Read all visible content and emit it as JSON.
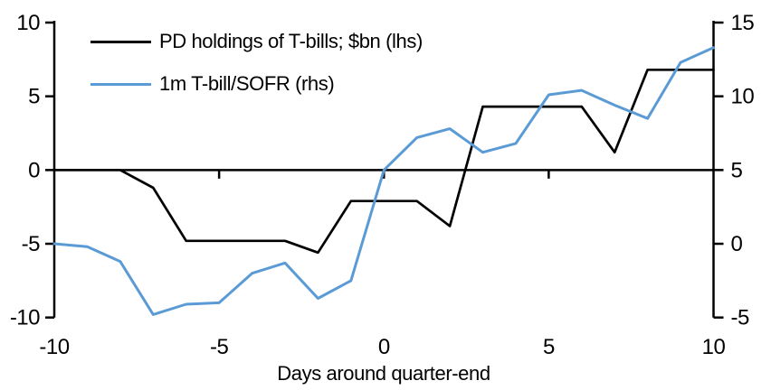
{
  "page": {
    "background": "#ffffff"
  },
  "colors": {
    "axis": "#000000",
    "text": "#000000",
    "series_black": "#000000",
    "series_blue": "#5B9BD5"
  },
  "legend": {
    "items": [
      {
        "label": "PD holdings of T-bills; $bn (lhs)",
        "color": "#000000"
      },
      {
        "label": "1m T-bill/SOFR (rhs)",
        "color": "#5B9BD5"
      }
    ]
  },
  "chart_data": {
    "type": "line",
    "title": "",
    "xlabel": "Days around quarter-end",
    "x": [
      -10,
      -9,
      -8,
      -7,
      -6,
      -5,
      -4,
      -3,
      -2,
      -1,
      0,
      1,
      2,
      3,
      4,
      5,
      6,
      7,
      8,
      9,
      10
    ],
    "series": [
      {
        "name": "PD holdings of T-bills; $bn (lhs)",
        "axis": "lhs",
        "color": "#000000",
        "values": [
          0,
          0,
          0,
          -1.2,
          -4.8,
          -4.8,
          -4.8,
          -4.8,
          -5.6,
          -2.1,
          -2.1,
          -2.1,
          -3.8,
          4.3,
          4.3,
          4.3,
          4.3,
          1.2,
          6.8,
          6.8,
          6.8
        ]
      },
      {
        "name": "1m T-bill/SOFR (rhs)",
        "axis": "rhs",
        "color": "#5B9BD5",
        "values": [
          0,
          -0.2,
          -1.2,
          -4.8,
          -4.1,
          -4.0,
          -2.0,
          -1.3,
          -3.7,
          -2.5,
          5.0,
          7.2,
          7.8,
          6.2,
          6.8,
          10.1,
          10.4,
          9.4,
          8.5,
          12.3,
          13.3
        ]
      }
    ],
    "x_ticks": [
      -10,
      -5,
      0,
      5,
      10
    ],
    "x_inner_ticks": [
      -5,
      0,
      5
    ],
    "xlim": [
      -10,
      10
    ],
    "lhs_axis": {
      "ticks": [
        10,
        5,
        0,
        -5,
        -10
      ],
      "range": [
        -10,
        10
      ]
    },
    "rhs_axis": {
      "ticks": [
        15,
        10,
        5,
        0,
        -5
      ],
      "range": [
        -5,
        15
      ]
    },
    "grid": false,
    "legend_position": "top-left-inside",
    "zero_line": true
  }
}
